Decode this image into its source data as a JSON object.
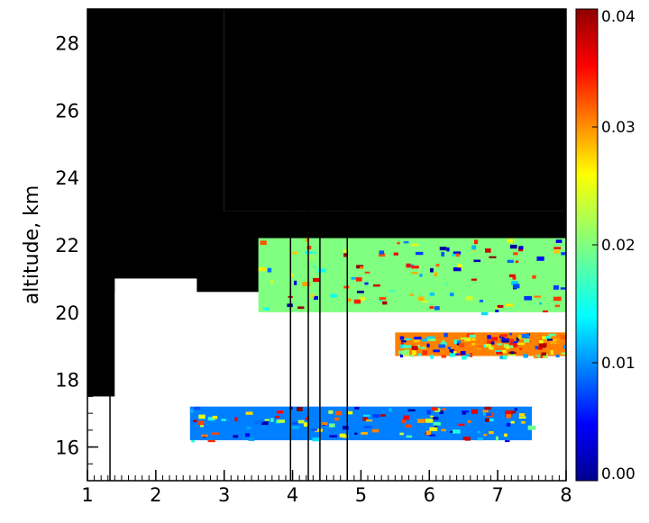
{
  "chart_data": {
    "type": "heatmap",
    "title": "",
    "xlabel": "",
    "ylabel": "altitude, km",
    "xlim": [
      1,
      8
    ],
    "ylim": [
      15,
      29
    ],
    "x_ticks": [
      "1",
      "2",
      "3",
      "4",
      "5",
      "6",
      "7",
      "8"
    ],
    "y_ticks": [
      "16",
      "18",
      "20",
      "22",
      "24",
      "26",
      "28"
    ],
    "colorbar": {
      "range": [
        0.0,
        0.04
      ],
      "ticks": [
        "0.00",
        "0.01",
        "0.02",
        "0.03",
        "0.04"
      ],
      "colormap": "jet"
    },
    "regions": [
      {
        "value": "nodata",
        "desc": "black, upper-left",
        "x": [
          1.0,
          3.0
        ],
        "y": [
          21.0,
          29.0
        ]
      },
      {
        "value": "nodata",
        "desc": "black, left column",
        "x": [
          1.0,
          1.4
        ],
        "y": [
          17.5,
          21.5
        ]
      },
      {
        "value": "nodata",
        "desc": "black, upper-right",
        "x": [
          3.0,
          8.0
        ],
        "y": [
          23.0,
          29.0
        ]
      },
      {
        "value": "nodata",
        "desc": "black band",
        "x": [
          2.6,
          8.0
        ],
        "y": [
          20.6,
          23.0
        ]
      },
      {
        "value": "saturated",
        "desc": "white, lower area",
        "x": [
          1.4,
          8.0
        ],
        "y": [
          15.0,
          20.6
        ]
      },
      {
        "value": 0.01,
        "desc": "blue/cyan layer near 16.5 km",
        "x": [
          2.5,
          7.5
        ],
        "y": [
          16.2,
          17.2
        ]
      },
      {
        "value": 0.03,
        "desc": "orange layer near 19 km",
        "x": [
          5.5,
          8.0
        ],
        "y": [
          18.7,
          19.4
        ]
      },
      {
        "value": 0.02,
        "desc": "mixed layer near 20.5-22 km",
        "x": [
          3.5,
          8.0
        ],
        "y": [
          20.0,
          22.2
        ]
      }
    ],
    "vertical_lines_x": [
      1.33,
      3.97,
      4.23,
      4.4,
      4.8
    ]
  }
}
